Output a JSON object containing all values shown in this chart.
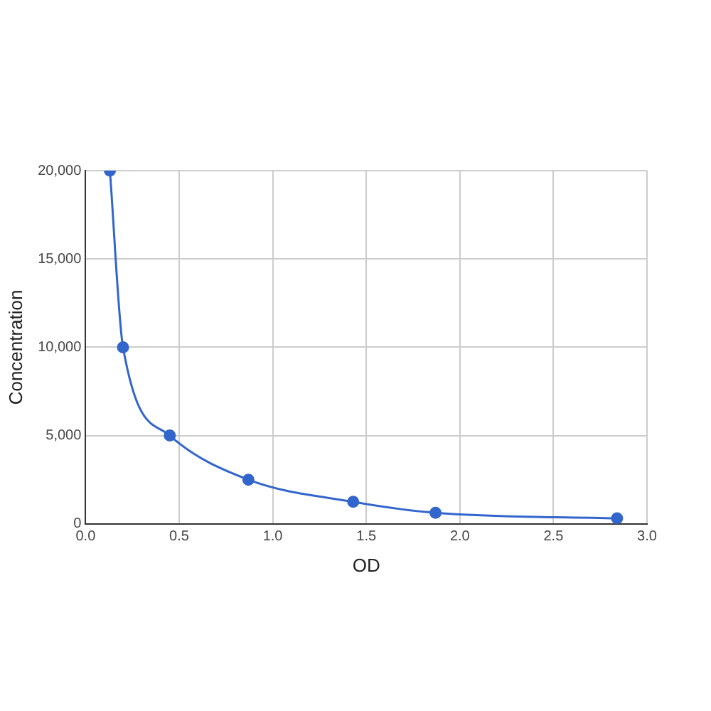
{
  "chart_data": {
    "type": "line",
    "xlabel": "OD",
    "ylabel": "Concentration",
    "x": [
      0.13,
      0.2,
      0.45,
      0.87,
      1.43,
      1.87,
      2.84
    ],
    "series": [
      {
        "color": "#3366cc",
        "values": [
          20000,
          10000,
          5000,
          2500,
          1250,
          625,
          310
        ]
      }
    ],
    "xlim": [
      0,
      3
    ],
    "xticks": [
      {
        "value": 0,
        "label": "0.0"
      },
      {
        "value": 0.5,
        "label": "0.5"
      },
      {
        "value": 1,
        "label": "1.0"
      },
      {
        "value": 1.5,
        "label": "1.5"
      },
      {
        "value": 2,
        "label": "2.0"
      },
      {
        "value": 2.5,
        "label": "2.5"
      },
      {
        "value": 3,
        "label": "3.0"
      }
    ],
    "ylim": [
      0,
      20000
    ],
    "yticks": [
      {
        "value": 0,
        "label": "0"
      },
      {
        "value": 5000,
        "label": "5,000"
      },
      {
        "value": 10000,
        "label": "10,000"
      },
      {
        "value": 15000,
        "label": "15,000"
      },
      {
        "value": 20000,
        "label": "20,000"
      }
    ],
    "grid": true,
    "marker": "circle",
    "line_style": "solid",
    "legend": false
  }
}
